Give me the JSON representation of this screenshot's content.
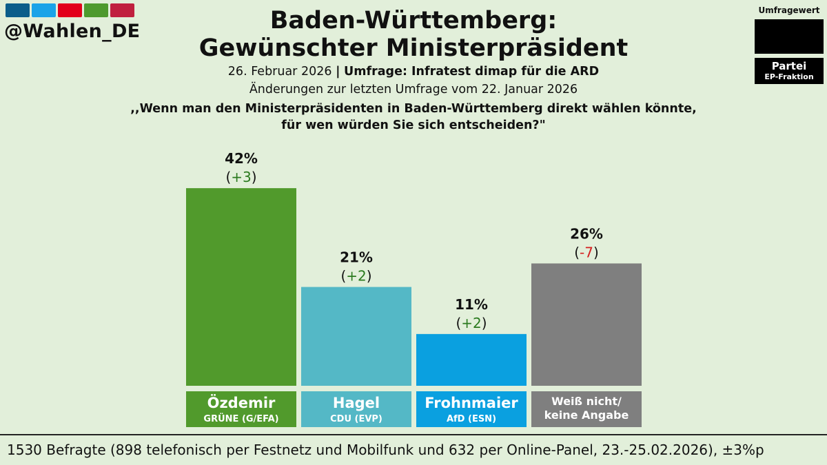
{
  "handle": "@Wahlen_DE",
  "brand_colors": [
    "#0b5d8a",
    "#1aa3e8",
    "#e2001a",
    "#4e9a2e",
    "#c0203f"
  ],
  "title_line1": "Baden-Württemberg:",
  "title_line2": "Gewünschter Ministerpräsident",
  "date": "26. Februar 2026",
  "separator": "|",
  "poll_source": "Umfrage: Infratest dimap für die ARD",
  "changes_note": "Änderungen zur letzten Umfrage vom 22. Januar 2026",
  "question_line1": ",,Wenn man den Ministerpräsidenten in Baden-Württemberg direkt wählen könnte,",
  "question_line2": "für wen würden Sie sich entscheiden?\"",
  "legend": {
    "value_label": "Umfragewert",
    "party_label": "Partei",
    "group_label": "EP-Fraktion"
  },
  "footer": "1530 Befragte (898 telefonisch per Festnetz und Mobilfunk und 632 per Online-Panel, 23.-25.02.2026), ±3%p",
  "chart_data": {
    "type": "bar",
    "ylim": [
      0,
      50
    ],
    "grid": false,
    "categories": [
      "Özdemir",
      "Hagel",
      "Frohnmaier",
      "Weiß nicht/ keine Angabe"
    ],
    "series": [
      {
        "values": [
          42,
          21,
          11,
          26
        ],
        "value_labels": [
          "42%",
          "21%",
          "11%",
          "26%"
        ],
        "changes": [
          "+3",
          "+2",
          "+2",
          "-7"
        ],
        "parties": [
          "GRÜNE (G/EFA)",
          "CDU (EVP)",
          "AfD (ESN)",
          ""
        ],
        "colors": [
          "#519a2c",
          "#54b8c6",
          "#0aa0e0",
          "#7f7f7f"
        ]
      }
    ],
    "change_colors": {
      "positive": "#2a7a1e",
      "negative": "#d42020"
    },
    "label_lines": [
      [
        "Özdemir"
      ],
      [
        "Hagel"
      ],
      [
        "Frohnmaier"
      ],
      [
        "Weiß nicht/",
        "keine Angabe"
      ]
    ]
  }
}
